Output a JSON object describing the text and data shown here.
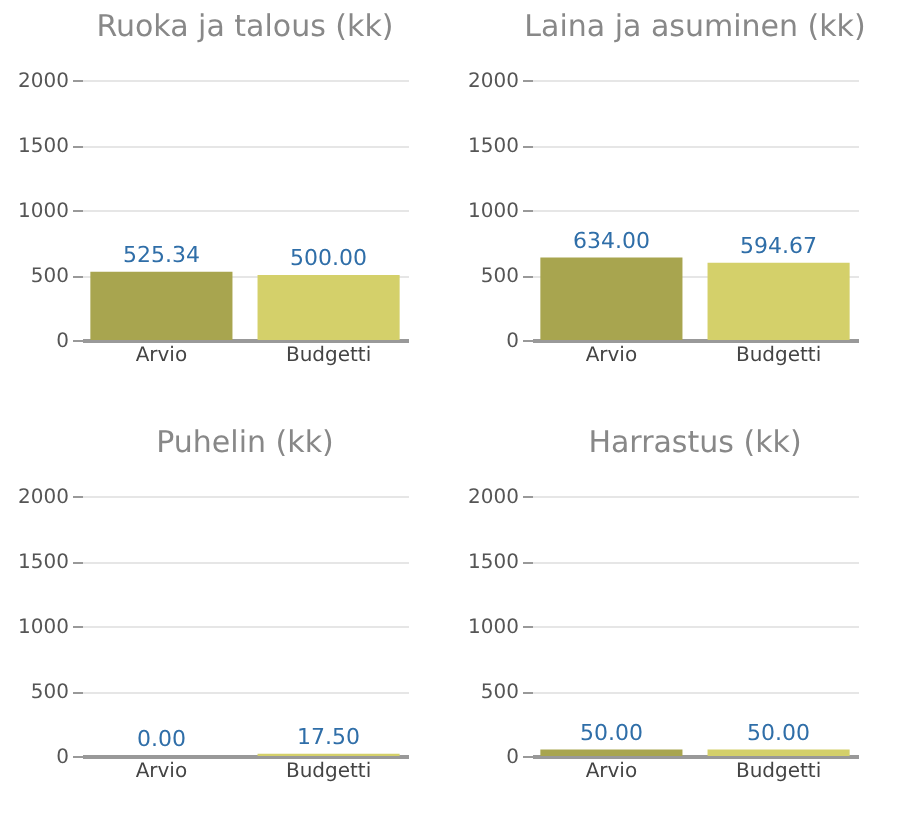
{
  "chart_data": [
    {
      "type": "bar",
      "title": "Ruoka ja talous (kk)",
      "categories": [
        "Arvio",
        "Budgetti"
      ],
      "values": [
        525.34,
        500.0
      ],
      "colors": [
        "#a8a54f",
        "#d4d06a"
      ],
      "value_labels": [
        "525.34",
        "500.00"
      ],
      "ylim": [
        0,
        2000
      ],
      "yticks": [
        0,
        500,
        1000,
        1500,
        2000
      ],
      "grid": "y"
    },
    {
      "type": "bar",
      "title": "Laina ja asuminen (kk)",
      "categories": [
        "Arvio",
        "Budgetti"
      ],
      "values": [
        634.0,
        594.67
      ],
      "colors": [
        "#a8a54f",
        "#d4d06a"
      ],
      "value_labels": [
        "634.00",
        "594.67"
      ],
      "ylim": [
        0,
        2000
      ],
      "yticks": [
        0,
        500,
        1000,
        1500,
        2000
      ],
      "grid": "y"
    },
    {
      "type": "bar",
      "title": "Puhelin (kk)",
      "categories": [
        "Arvio",
        "Budgetti"
      ],
      "values": [
        0.0,
        17.5
      ],
      "colors": [
        "#a8a54f",
        "#d4d06a"
      ],
      "value_labels": [
        "0.00",
        "17.50"
      ],
      "ylim": [
        0,
        2000
      ],
      "yticks": [
        0,
        500,
        1000,
        1500,
        2000
      ],
      "grid": "y"
    },
    {
      "type": "bar",
      "title": "Harrastus (kk)",
      "categories": [
        "Arvio",
        "Budgetti"
      ],
      "values": [
        50.0,
        50.0
      ],
      "colors": [
        "#a8a54f",
        "#d4d06a"
      ],
      "value_labels": [
        "50.00",
        "50.00"
      ],
      "ylim": [
        0,
        2000
      ],
      "yticks": [
        0,
        500,
        1000,
        1500,
        2000
      ],
      "grid": "y"
    }
  ]
}
